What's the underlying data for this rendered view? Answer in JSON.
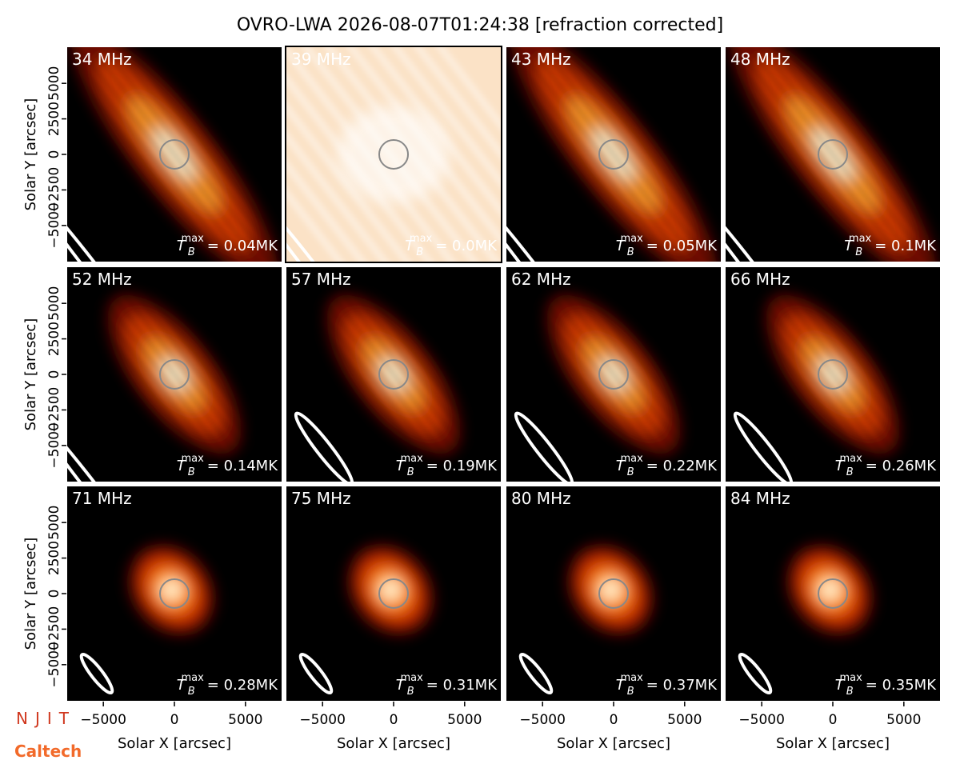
{
  "title": "OVRO-LWA 2026-08-07T01:24:38 [refraction corrected]",
  "shared_axes": {
    "xlabel": "Solar X [arcsec]",
    "ylabel": "Solar Y [arcsec]",
    "xlim": [
      -7600,
      7600
    ],
    "ylim": [
      -7600,
      7600
    ],
    "xticks": [
      {
        "value": -5000,
        "label": "−5000"
      },
      0,
      5000
    ],
    "yticks": [
      {
        "value": -5000,
        "label": "−5000"
      },
      {
        "value": -2500,
        "label": "−2500"
      },
      0,
      2500,
      5000
    ]
  },
  "tb_symbol": {
    "base": "T",
    "sub": "B",
    "sup": "max"
  },
  "logos": {
    "top": "NJIT",
    "bottom": "Caltech"
  },
  "chart_data": [
    {
      "type": "image",
      "title": "34 MHz",
      "annotation": "= 0.04MK"
    },
    {
      "type": "image",
      "title": "39 MHz",
      "annotation": "= 0.0MK"
    },
    {
      "type": "image",
      "title": "43 MHz",
      "annotation": "= 0.05MK"
    },
    {
      "type": "image",
      "title": "48 MHz",
      "annotation": "= 0.1MK"
    },
    {
      "type": "image",
      "title": "52 MHz",
      "annotation": "= 0.14MK"
    },
    {
      "type": "image",
      "title": "57 MHz",
      "annotation": "= 0.19MK"
    },
    {
      "type": "image",
      "title": "62 MHz",
      "annotation": "= 0.22MK"
    },
    {
      "type": "image",
      "title": "66 MHz",
      "annotation": "= 0.26MK"
    },
    {
      "type": "image",
      "title": "71 MHz",
      "annotation": "= 0.28MK"
    },
    {
      "type": "image",
      "title": "75 MHz",
      "annotation": "= 0.31MK"
    },
    {
      "type": "image",
      "title": "80 MHz",
      "annotation": "= 0.37MK"
    },
    {
      "type": "image",
      "title": "84 MHz",
      "annotation": "= 0.35MK"
    }
  ]
}
